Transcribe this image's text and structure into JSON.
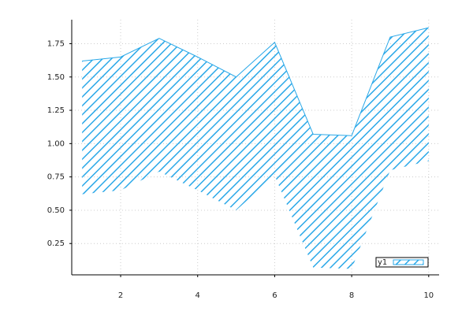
{
  "chart_data": {
    "type": "band",
    "x": [
      1,
      2,
      3,
      4,
      5,
      6,
      7,
      8,
      9,
      10
    ],
    "series": [
      {
        "name": "y1",
        "color": "#2aa8e8",
        "values": [
          1.62,
          1.65,
          1.79,
          1.65,
          1.5,
          1.76,
          1.07,
          1.06,
          1.8,
          1.87
        ],
        "lower": [
          0.62,
          0.65,
          0.79,
          0.65,
          0.5,
          0.76,
          0.07,
          0.06,
          0.8,
          0.87
        ]
      }
    ],
    "xlim": [
      0.73,
      10.27
    ],
    "ylim": [
      0.015,
      1.93
    ],
    "xticks": [
      2,
      4,
      6,
      8,
      10
    ],
    "yticks": [
      0.25,
      {
        "value": 0.5,
        "label": "0.50"
      },
      0.75,
      {
        "value": 1,
        "label": "1.00"
      },
      1.25,
      {
        "value": 1.5,
        "label": "1.50"
      },
      1.75
    ],
    "grid": true,
    "legend": "bottom-right"
  }
}
